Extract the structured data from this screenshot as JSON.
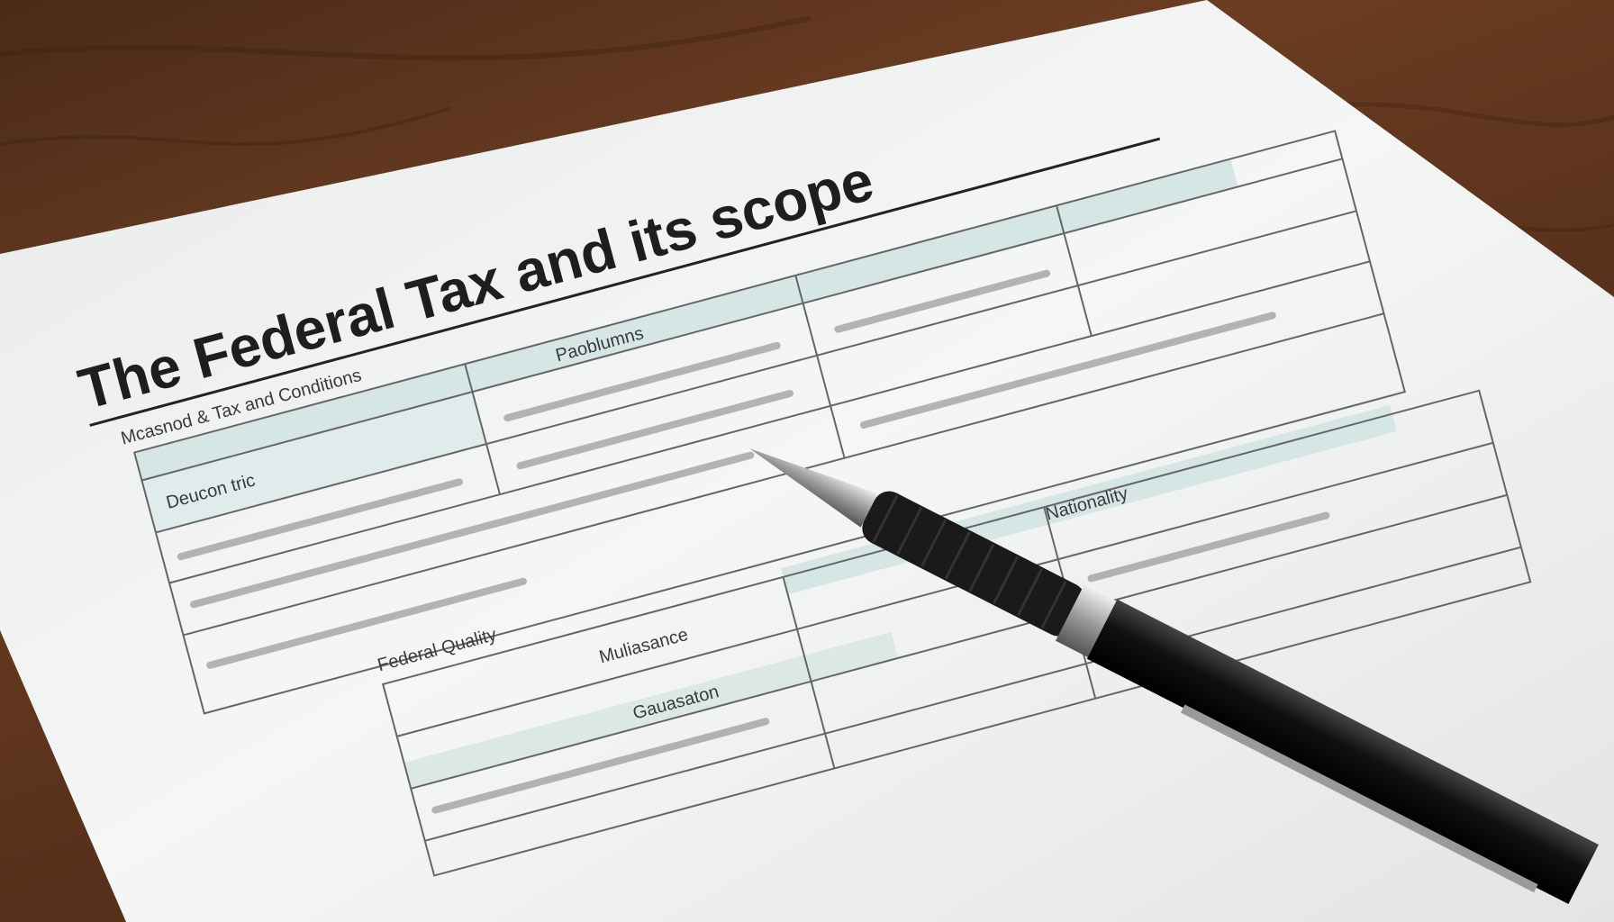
{
  "document": {
    "title": "The Federal Tax and its scope",
    "subtitle": "Mcasnod & Tax and Conditions",
    "labels": [
      "Paoblumns",
      "Deucon tric",
      "Nationality",
      "Federal Quality",
      "Muliasance",
      "Gauasaton"
    ]
  },
  "colors": {
    "wood": "#5a321c",
    "paper": "#f2f3f3",
    "form_band": "#d6e6e4",
    "ink": "#1e1e1e",
    "pen_body": "#111111",
    "pen_chrome": "#b8b8b8"
  },
  "icons": {
    "pen": "ballpoint-pen-icon"
  }
}
